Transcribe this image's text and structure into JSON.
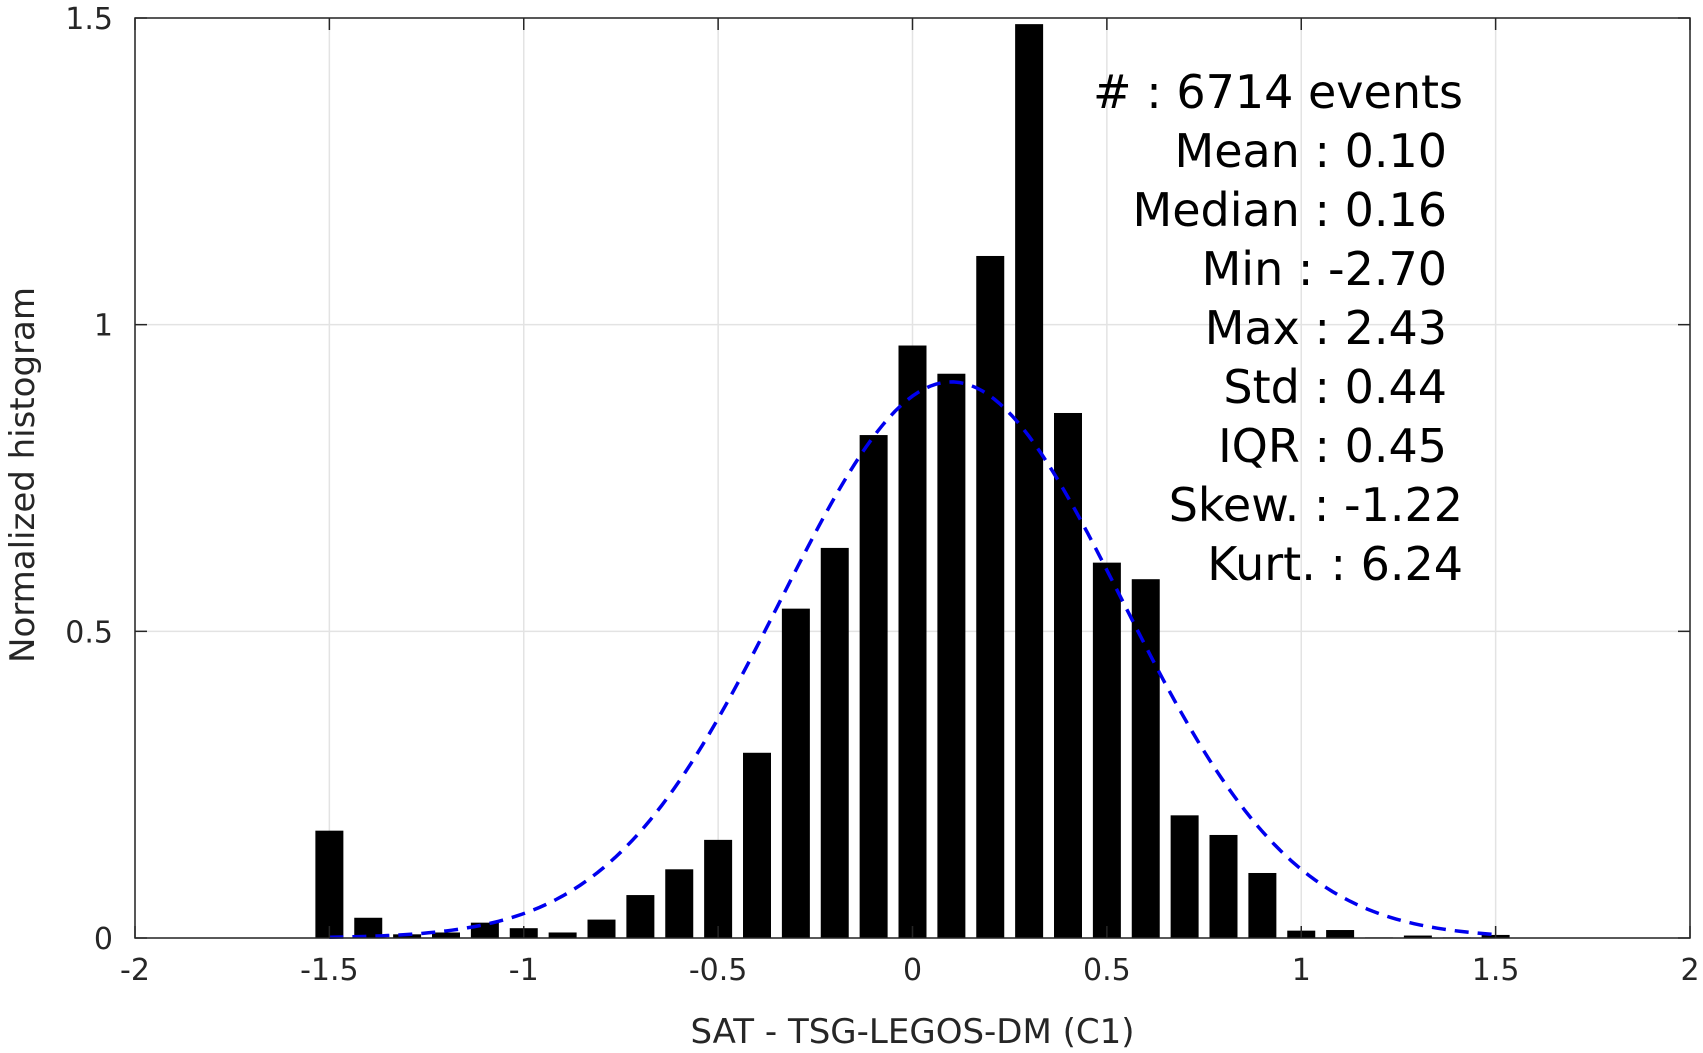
{
  "chart_data": {
    "type": "bar",
    "xlabel": "SAT - TSG-LEGOS-DM (C1)",
    "ylabel": "Normalized histogram",
    "xlim": [
      -2,
      2
    ],
    "ylim": [
      0,
      1.5
    ],
    "xticks": [
      -2,
      -1.5,
      -1,
      -0.5,
      0,
      0.5,
      1,
      1.5,
      2
    ],
    "xtick_labels": [
      "-2",
      "-1.5",
      "-1",
      "-0.5",
      "0",
      "0.5",
      "1",
      "1.5",
      "2"
    ],
    "yticks": [
      0,
      0.5,
      1,
      1.5
    ],
    "ytick_labels": [
      "0",
      "0.5",
      "1",
      "1.5"
    ],
    "grid": true,
    "bar_color": "#000000",
    "bars": {
      "x": [
        -1.5,
        -1.4,
        -1.3,
        -1.2,
        -1.1,
        -1.0,
        -0.9,
        -0.8,
        -0.7,
        -0.6,
        -0.5,
        -0.4,
        -0.3,
        -0.2,
        -0.1,
        0.0,
        0.1,
        0.2,
        0.3,
        0.4,
        0.5,
        0.6,
        0.7,
        0.8,
        0.9,
        1.0,
        1.1,
        1.2,
        1.3,
        1.4,
        1.5
      ],
      "values": [
        0.175,
        0.033,
        0.006,
        0.009,
        0.025,
        0.016,
        0.009,
        0.03,
        0.07,
        0.112,
        0.16,
        0.302,
        0.537,
        0.636,
        0.82,
        0.966,
        0.92,
        1.112,
        1.49,
        0.856,
        0.612,
        0.585,
        0.2,
        0.168,
        0.106,
        0.012,
        0.013,
        0.001,
        0.004,
        0.001,
        0.005
      ]
    },
    "fit": {
      "name": "normal-fit",
      "style": "dashed",
      "color": "#0000ee",
      "mean": 0.1,
      "std": 0.44,
      "x_range": [
        -1.5,
        1.5
      ]
    },
    "stats": [
      {
        "label": "#  : 6714 events"
      },
      {
        "label": "Mean : 0.10"
      },
      {
        "label": "Median : 0.16"
      },
      {
        "label": "Min : -2.70"
      },
      {
        "label": "Max : 2.43"
      },
      {
        "label": "Std : 0.44"
      },
      {
        "label": "IQR : 0.45"
      },
      {
        "label": "Skew. : -1.22"
      },
      {
        "label": "Kurt. : 6.24"
      }
    ]
  }
}
